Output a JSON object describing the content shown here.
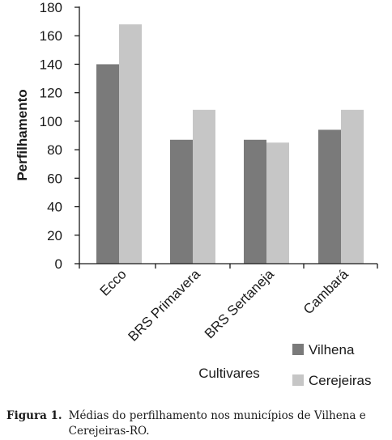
{
  "chart_data": {
    "type": "bar",
    "categories": [
      "Ecco",
      "BRS Primavera",
      "BRS Sertaneja",
      "Cambará"
    ],
    "series": [
      {
        "name": "Vilhena",
        "values": [
          140,
          87,
          87,
          94
        ],
        "color": "#7a7a7a"
      },
      {
        "name": "Cerejeiras",
        "values": [
          168,
          108,
          85,
          108
        ],
        "color": "#c6c6c6"
      }
    ],
    "yticks": [
      0,
      20,
      40,
      60,
      80,
      100,
      120,
      140,
      160,
      180
    ],
    "ylim": [
      0,
      180
    ],
    "ylabel": "Perfilhamento",
    "xlabel": "Cultivares",
    "grid": false,
    "legend_position": "bottom-right"
  },
  "caption": {
    "label": "Figura 1.",
    "text": "Médias do perfilhamento nos municípios de Vilhena e Cerejeiras-RO."
  }
}
